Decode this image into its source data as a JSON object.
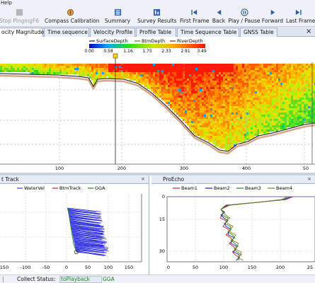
{
  "menubar": {
    "help_label": "Help"
  },
  "toolbar": {
    "stop_pinging_label": "Stop PingingF6",
    "compass_calibration_label": "Compass Calibration",
    "summary_label": "Summary",
    "survey_results_label": "Survey Results",
    "first_frame_label": "First Frame",
    "back_label": "Back",
    "play_pause_label": "Play / Pause",
    "forward_label": "Forward",
    "last_frame_label": "Last Frame"
  },
  "tabs": [
    {
      "label": "ocity Magnitude",
      "active": true
    },
    {
      "label": "Time sequence",
      "active": false
    },
    {
      "label": "Velocity Profile",
      "active": false
    },
    {
      "label": "Profile Table",
      "active": false
    },
    {
      "label": "Time Sequence Table",
      "active": false
    },
    {
      "label": "GNSS Table",
      "active": false
    }
  ],
  "window_close_glyph": "×",
  "velocity_plot": {
    "legend": [
      "SurfaceDepth",
      "BtmDepth",
      "RiverDepth"
    ],
    "legend_colors": [
      "#1a1a1a",
      "#2a8a2a",
      "#8b1a1a"
    ],
    "colorbar_ticks": [
      "0.00",
      "0.58",
      "1.16",
      "1.75",
      "2.33",
      "2.91",
      "3.49"
    ],
    "x_ticks": [
      "100",
      "200",
      "300",
      "400",
      "50"
    ],
    "marker_position_fraction": 0.37
  },
  "ship_track": {
    "title": "t Track",
    "close_glyph": "×",
    "legend": [
      "WaterVel",
      "BtmTrack",
      "GGA"
    ],
    "legend_colors": [
      "#3a3af0",
      "#d02020",
      "#1b8b1b"
    ],
    "x_ticks": [
      "150",
      "-100",
      "-50",
      "0",
      "50",
      "100",
      "150"
    ]
  },
  "pro_echo": {
    "title": "ProEcho",
    "close_glyph": "×",
    "legend": [
      "Beam1",
      "Beam2",
      "Beam3",
      "Beam4"
    ],
    "legend_colors": [
      "#d02020",
      "#1a1ad0",
      "#1b8b1b",
      "#8a7a20"
    ],
    "y_ticks": [
      "0",
      "15",
      "30"
    ],
    "x_ticks": [
      "0",
      "50",
      "100",
      "150",
      "200",
      "25"
    ]
  },
  "status": {
    "collect_status_label": "Collect Status:",
    "mode_value": "toPlayback",
    "source_value": "GGA"
  },
  "colors": {
    "toolbar_bg": "#eef1f7",
    "tab_border": "#9fb0c9",
    "track_blue": "#2b2be0",
    "ping_red": "#ff2a00",
    "ping_green": "#25d625"
  }
}
